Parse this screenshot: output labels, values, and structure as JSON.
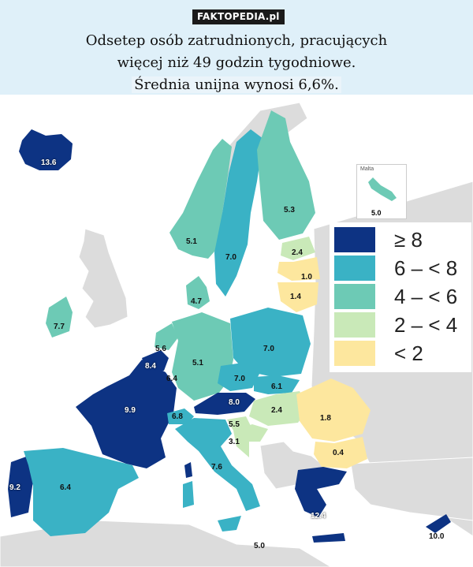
{
  "brand": "FAKTOPEDIA.pl",
  "headline": {
    "line1": "Odsetep osób zatrudnionych, pracujących",
    "line2": "więcej niż 49 godzin tygodniowe.",
    "line3": "Średnia unijna wynosi 6,6%."
  },
  "colors": {
    "c1": "#0d3383",
    "c2": "#3ab2c5",
    "c3": "#6dcab5",
    "c4": "#c9e9b8",
    "c5": "#fde79e",
    "nonEU": "#dcdcdc"
  },
  "legend": [
    {
      "label": "≥ 8",
      "color": "#0d3383"
    },
    {
      "label": "6 – < 8",
      "color": "#3ab2c5"
    },
    {
      "label": "4 – < 6",
      "color": "#6dcab5"
    },
    {
      "label": "2 – < 4",
      "color": "#c9e9b8"
    },
    {
      "label": "< 2",
      "color": "#fde79e"
    }
  ],
  "inset": {
    "title": "Malta",
    "value": "5.0"
  },
  "countries": [
    {
      "id": "iceland",
      "value": "13.6"
    },
    {
      "id": "norway",
      "value": "5.1"
    },
    {
      "id": "sweden",
      "value": "7.0"
    },
    {
      "id": "finland",
      "value": "5.3"
    },
    {
      "id": "estonia",
      "value": "2.4"
    },
    {
      "id": "latvia",
      "value": "1.0"
    },
    {
      "id": "lithuania",
      "value": "1.4"
    },
    {
      "id": "denmark",
      "value": "4.7"
    },
    {
      "id": "ireland",
      "value": "7.7"
    },
    {
      "id": "netherlands",
      "value": "5.6"
    },
    {
      "id": "belgium",
      "value": "8.4"
    },
    {
      "id": "luxembourg",
      "value": "6.4"
    },
    {
      "id": "germany",
      "value": "5.1"
    },
    {
      "id": "poland",
      "value": "7.0"
    },
    {
      "id": "czechia",
      "value": "7.0"
    },
    {
      "id": "slovakia",
      "value": "6.1"
    },
    {
      "id": "austria",
      "value": "8.0"
    },
    {
      "id": "hungary",
      "value": "2.4"
    },
    {
      "id": "romania",
      "value": "1.8"
    },
    {
      "id": "bulgaria",
      "value": "0.4"
    },
    {
      "id": "france",
      "value": "9.9"
    },
    {
      "id": "switzerland",
      "value": "6.8"
    },
    {
      "id": "slovenia",
      "value": "5.5"
    },
    {
      "id": "croatia",
      "value": "3.1"
    },
    {
      "id": "italy",
      "value": "7.6"
    },
    {
      "id": "portugal",
      "value": "9.2"
    },
    {
      "id": "spain",
      "value": "6.4"
    },
    {
      "id": "greece",
      "value": "12.4"
    },
    {
      "id": "cyprus",
      "value": "10.0"
    },
    {
      "id": "malta-south",
      "value": "5.0"
    }
  ]
}
